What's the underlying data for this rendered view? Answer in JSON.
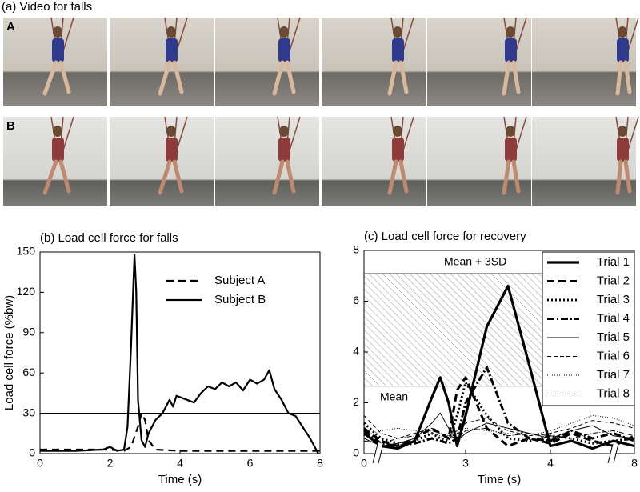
{
  "panel_a": {
    "title": "(a) Video for falls",
    "rows": [
      "A",
      "B"
    ]
  },
  "chart_data": [
    {
      "type": "line",
      "title": "(b) Load cell force for falls",
      "x_label": "Time (s)",
      "y_label": "Load cell force (%bw)",
      "xlim": [
        0,
        8
      ],
      "xticks": [
        0,
        2,
        4,
        6,
        8
      ],
      "ylim": [
        0,
        150
      ],
      "yticks": [
        0,
        30,
        60,
        90,
        120,
        150
      ],
      "threshold": 30,
      "series": [
        {
          "name": "Subject A",
          "color": "#000000",
          "width": 2.2,
          "dash": "9,6",
          "x": [
            0,
            2,
            2.4,
            2.6,
            2.8,
            2.9,
            3.0,
            3.1,
            3.3,
            4,
            6,
            8
          ],
          "values": [
            3,
            3,
            2,
            5,
            20,
            30,
            25,
            10,
            3,
            2,
            2,
            2
          ]
        },
        {
          "name": "Subject B",
          "color": "#000000",
          "width": 2.2,
          "dash": "",
          "x": [
            0,
            1,
            1.8,
            2,
            2.2,
            2.4,
            2.5,
            2.6,
            2.7,
            2.75,
            2.8,
            2.9,
            3.0,
            3.1,
            3.3,
            3.5,
            3.7,
            3.8,
            3.9,
            4.0,
            4.2,
            4.4,
            4.6,
            4.8,
            5.0,
            5.2,
            5.4,
            5.6,
            5.8,
            6.0,
            6.2,
            6.4,
            6.55,
            6.7,
            6.9,
            7.1,
            7.3,
            7.5,
            7.7,
            7.85,
            7.95
          ],
          "values": [
            2,
            2,
            3,
            5,
            2,
            3,
            20,
            80,
            148,
            120,
            40,
            10,
            5,
            15,
            25,
            30,
            40,
            35,
            43,
            42,
            40,
            38,
            45,
            50,
            48,
            53,
            50,
            53,
            47,
            55,
            52,
            55,
            62,
            48,
            40,
            30,
            28,
            20,
            12,
            5,
            0
          ]
        }
      ]
    },
    {
      "type": "line",
      "title": "(c) Load cell force for recovery",
      "x_label": "Time (s)",
      "broken_x_axis": true,
      "xlim": [
        0,
        8
      ],
      "xticks": [
        0,
        3,
        4,
        8
      ],
      "ylim": [
        0,
        8
      ],
      "yticks": [
        0,
        2,
        4,
        6,
        8
      ],
      "band": {
        "lower_label": "Mean",
        "lower": 2.65,
        "upper_label": "Mean + 3SD",
        "upper": 7.1
      },
      "x": [
        0,
        0.5,
        1,
        1.5,
        2,
        2.25,
        2.5,
        2.75,
        3,
        3.25,
        3.5,
        3.75,
        4,
        5,
        6,
        7,
        8
      ],
      "series": [
        {
          "name": "Trial 1",
          "color": "#000000",
          "width": 3.2,
          "dash": "",
          "values": [
            0.8,
            0.3,
            0.2,
            0.5,
            2.2,
            3.0,
            2.0,
            0.3,
            1.5,
            5.0,
            6.6,
            3.5,
            0.3,
            0.5,
            0.2,
            0.5,
            0.3
          ]
        },
        {
          "name": "Trial 2",
          "color": "#000000",
          "width": 3.0,
          "dash": "9,5",
          "values": [
            1.0,
            0.5,
            0.3,
            0.6,
            1.0,
            0.8,
            0.6,
            2.5,
            3.0,
            1.0,
            0.3,
            0.6,
            0.4,
            0.8,
            0.5,
            0.3,
            0.7
          ]
        },
        {
          "name": "Trial 3",
          "color": "#000000",
          "width": 3.0,
          "dash": "2,3",
          "values": [
            1.2,
            0.6,
            0.4,
            0.5,
            0.8,
            0.6,
            0.5,
            1.5,
            2.8,
            1.5,
            0.6,
            0.5,
            0.7,
            0.6,
            0.4,
            0.5,
            0.6
          ]
        },
        {
          "name": "Trial 4",
          "color": "#000000",
          "width": 3.0,
          "dash": "9,3,2,3",
          "values": [
            0.9,
            0.4,
            0.3,
            0.4,
            0.6,
            0.5,
            0.4,
            0.6,
            2.0,
            3.4,
            1.2,
            0.6,
            0.5,
            0.9,
            0.6,
            0.8,
            0.5
          ]
        },
        {
          "name": "Trial 5",
          "color": "#000000",
          "width": 1,
          "dash": "",
          "values": [
            0.6,
            0.3,
            0.4,
            0.6,
            1.2,
            1.6,
            1.0,
            0.5,
            0.8,
            1.2,
            1.0,
            0.8,
            0.6,
            0.9,
            1.1,
            0.7,
            0.6
          ]
        },
        {
          "name": "Trial 6",
          "color": "#000000",
          "width": 1,
          "dash": "5,3",
          "values": [
            1.5,
            0.8,
            0.6,
            0.8,
            1.0,
            0.8,
            0.7,
            0.9,
            1.2,
            1.4,
            0.9,
            0.7,
            0.8,
            1.0,
            1.3,
            1.2,
            1.0
          ]
        },
        {
          "name": "Trial 7",
          "color": "#000000",
          "width": 1,
          "dash": "1,2",
          "values": [
            0.7,
            0.9,
            1.0,
            0.9,
            0.8,
            0.7,
            0.6,
            0.8,
            1.0,
            0.9,
            0.8,
            0.7,
            0.9,
            1.2,
            1.5,
            1.4,
            1.1
          ]
        },
        {
          "name": "Trial 8",
          "color": "#000000",
          "width": 1,
          "dash": "6,2,1,2",
          "values": [
            0.5,
            0.4,
            0.6,
            0.7,
            0.9,
            0.8,
            0.7,
            0.6,
            0.9,
            1.0,
            0.7,
            0.8,
            0.7,
            0.6,
            0.8,
            0.9,
            0.7
          ]
        }
      ]
    }
  ]
}
